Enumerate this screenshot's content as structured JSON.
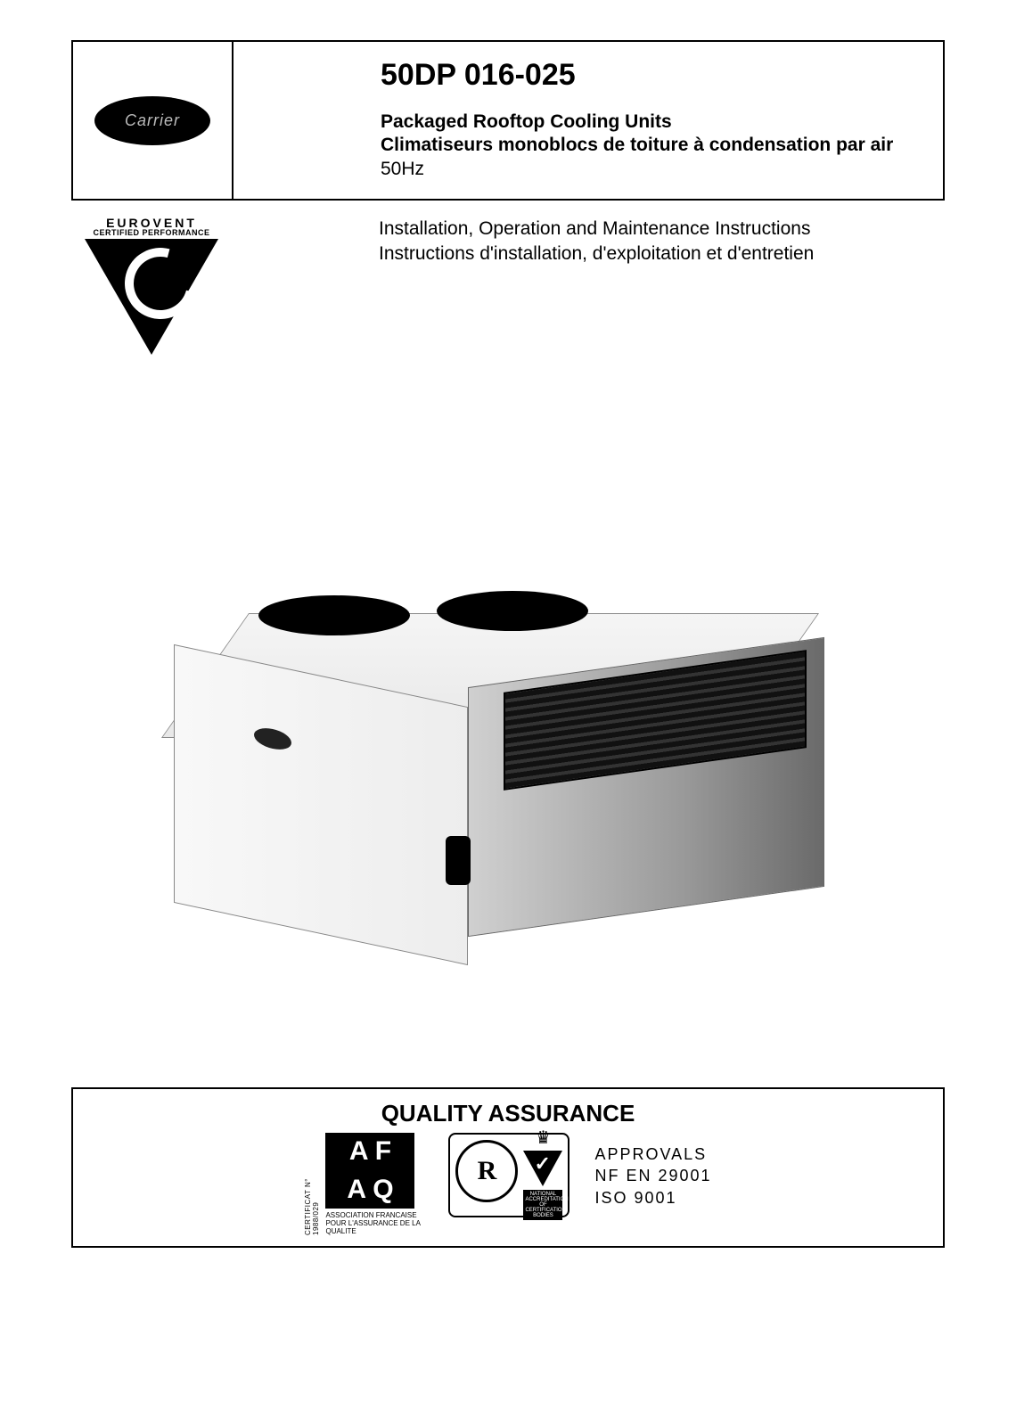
{
  "header": {
    "brand": "Carrier",
    "model": "50DP 016-025",
    "subtitle_en": "Packaged Rooftop Cooling Units",
    "subtitle_fr": "Climatiseurs monoblocs de toiture à condensation par air",
    "hz": "50Hz"
  },
  "eurovent": {
    "line1": "EUROVENT",
    "line2": "CERTIFIED PERFORMANCE"
  },
  "instructions": {
    "en": "Installation, Operation and Maintenance Instructions",
    "fr": "Instructions d'installation, d'exploitation et d'entretien"
  },
  "qa": {
    "title": "QUALITY ASSURANCE",
    "afaq_cert": "CERTIFICAT N° 1988/029",
    "afaq_caption": "ASSOCIATION FRANCAISE POUR L'ASSURANCE DE LA QUALITE",
    "nacb": "NATIONAL ACCREDITATION OF CERTIFICATION BODIES",
    "approvals_label": "APPROVALS",
    "approvals_l1": "NF  EN  29001",
    "approvals_l2": "ISO  9001"
  },
  "colors": {
    "text": "#000000",
    "border": "#000000",
    "background": "#ffffff"
  }
}
